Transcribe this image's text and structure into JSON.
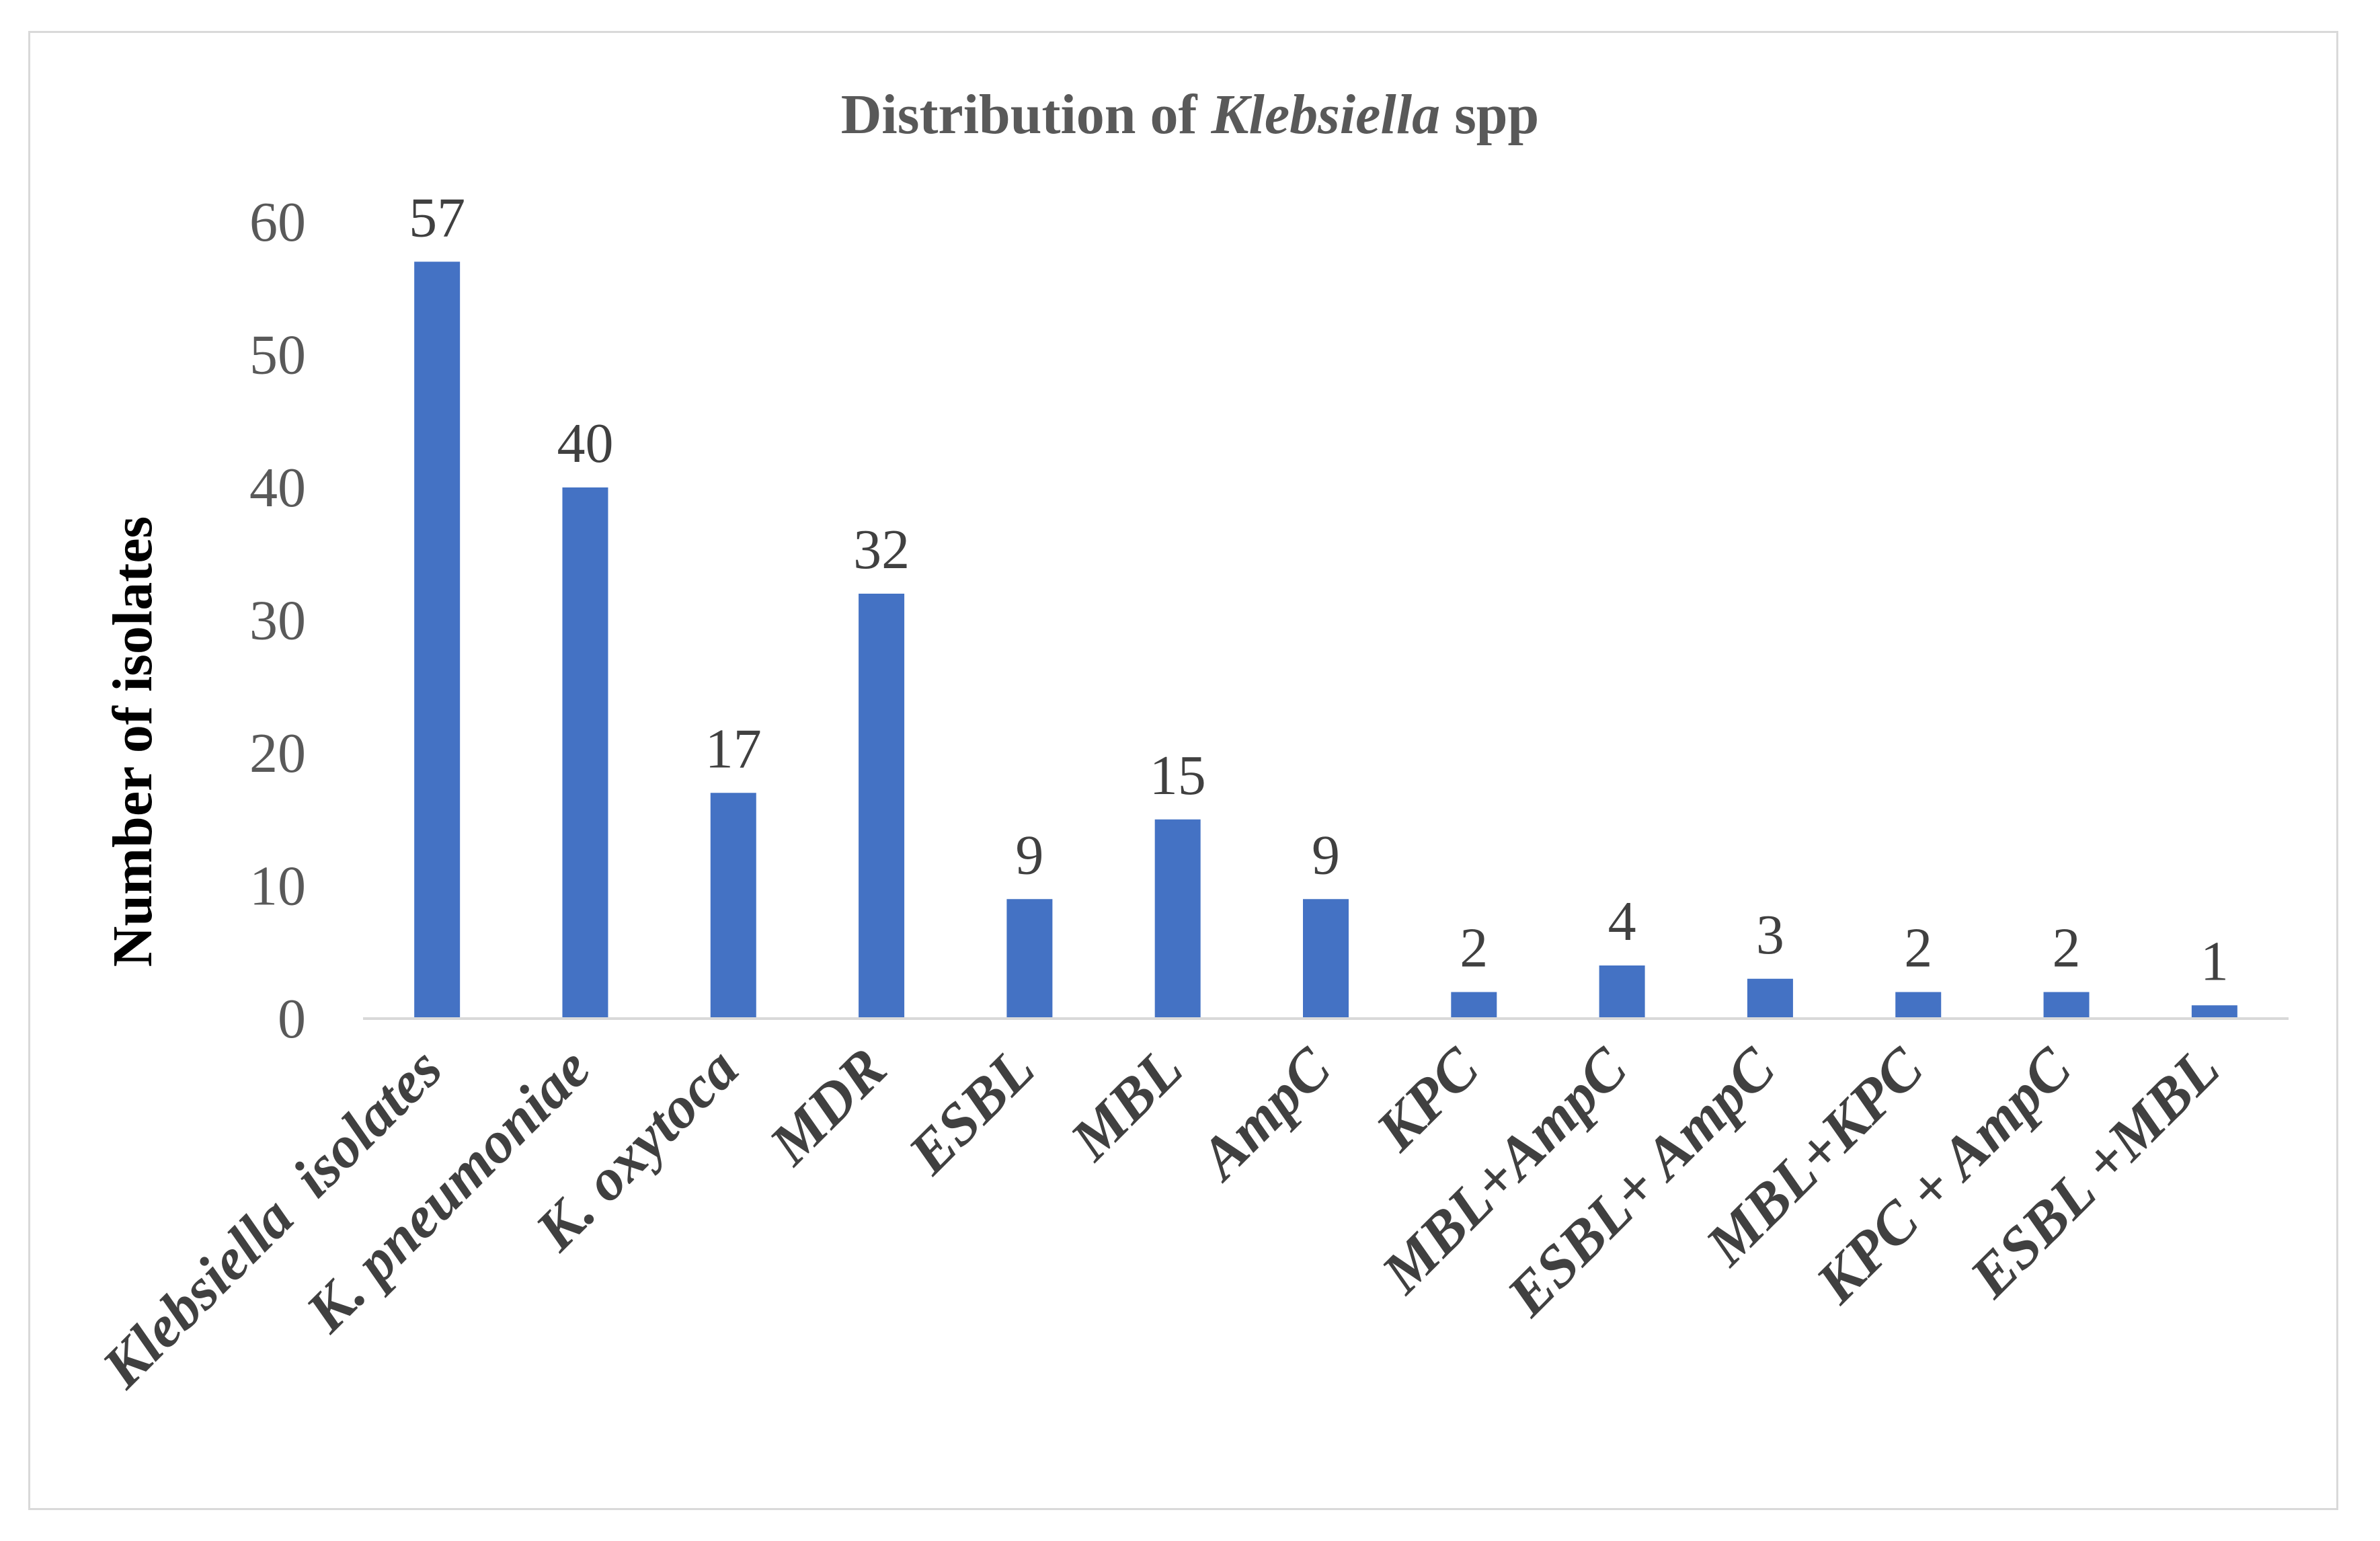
{
  "chart_data": {
    "type": "bar",
    "title": {
      "prefix": "Distribution of ",
      "italic": "Klebsiella",
      "suffix": " spp"
    },
    "xlabel": "",
    "ylabel": "Number of isolates",
    "categories": [
      "Klebsiella  isolates",
      "K. pneumoniae",
      "K. oxytoca",
      "MDR",
      "ESBL",
      "MBL",
      "AmpC",
      "KPC",
      "MBL+AmpC",
      "ESBL+ AmpC",
      "MBL+KPC",
      "KPC + AmpC",
      "ESBL +MBL"
    ],
    "values": [
      57,
      40,
      17,
      32,
      9,
      15,
      9,
      2,
      4,
      3,
      2,
      2,
      1
    ],
    "ylim": [
      0,
      60
    ],
    "yticks": [
      0,
      10,
      20,
      30,
      40,
      50,
      60
    ],
    "data_labels": true,
    "grid": false,
    "legend": "none",
    "bar_color": "#4472C4",
    "axis_color": "#d9d9d9"
  }
}
